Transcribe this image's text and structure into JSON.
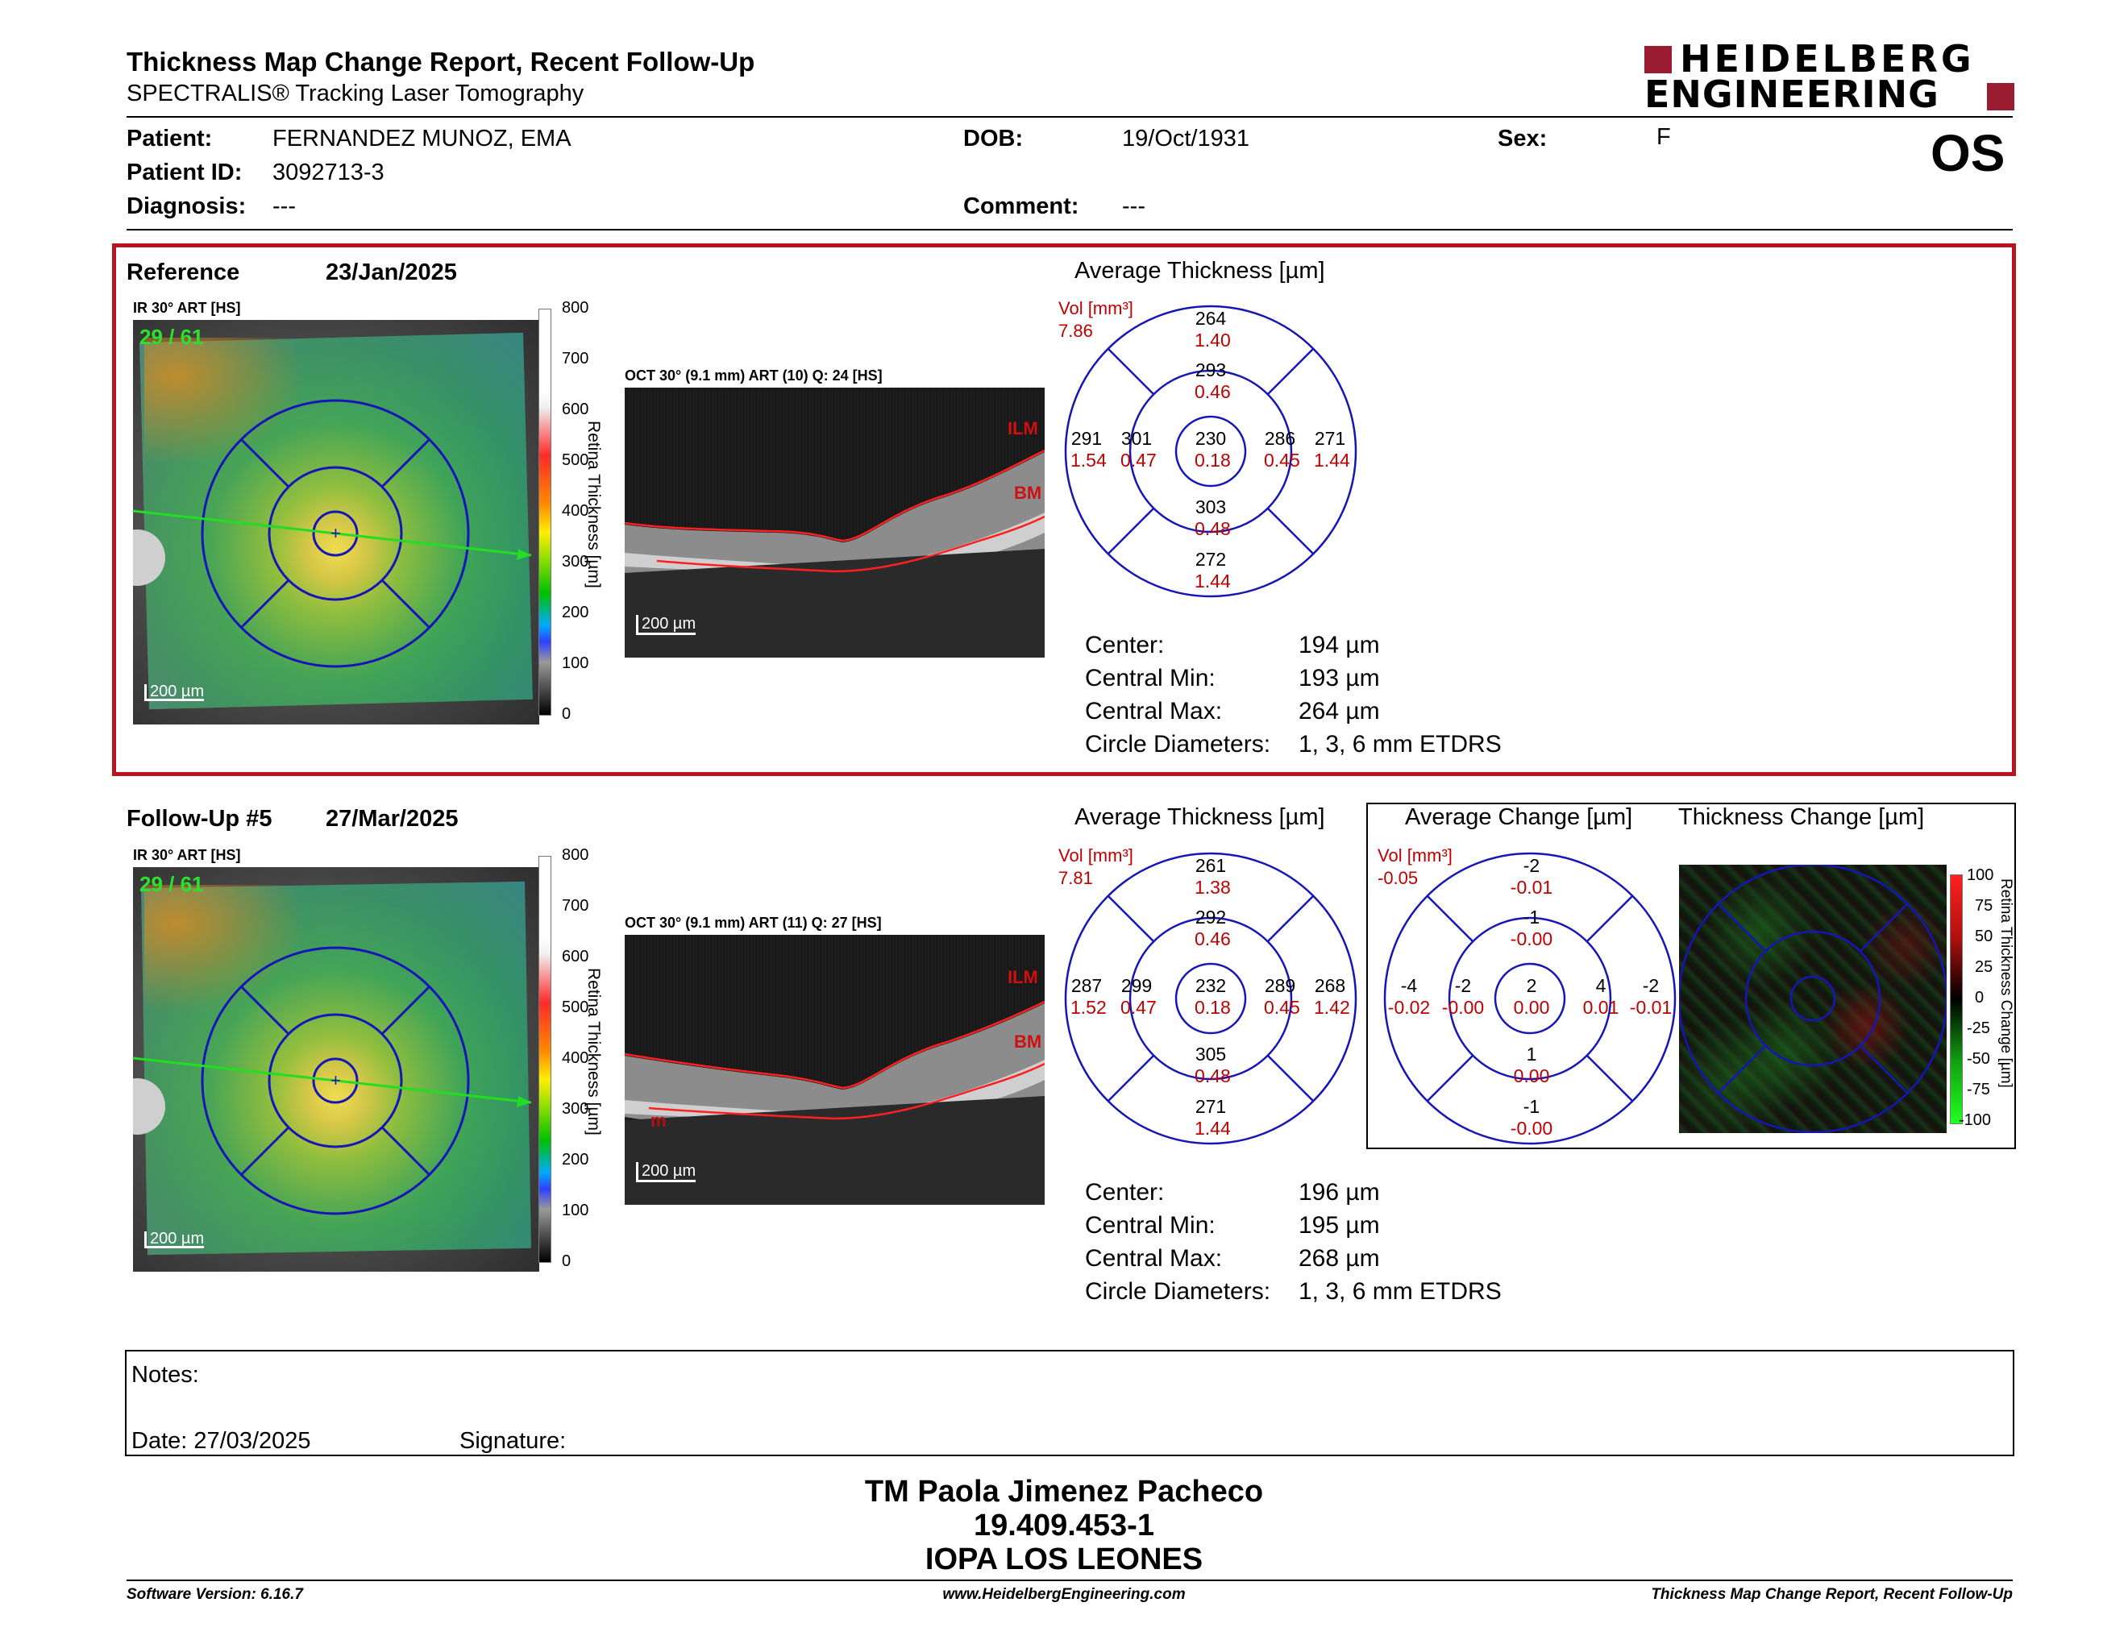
{
  "header": {
    "title": "Thickness Map Change Report, Recent Follow-Up",
    "subtitle": "SPECTRALIS® Tracking Laser Tomography",
    "logo_line1": "HEIDELBERG",
    "logo_line2": "ENGINEERING",
    "eye": "OS"
  },
  "patient": {
    "patient_label": "Patient:",
    "patient_value": "FERNANDEZ MUNOZ, EMA",
    "id_label": "Patient ID:",
    "id_value": "3092713-3",
    "diagnosis_label": "Diagnosis:",
    "diagnosis_value": "---",
    "dob_label": "DOB:",
    "dob_value": "19/Oct/1931",
    "comment_label": "Comment:",
    "comment_value": "---",
    "sex_label": "Sex:",
    "sex_value": "F"
  },
  "reference": {
    "label": "Reference",
    "date": "23/Jan/2025",
    "ir_label": "IR 30° ART [HS]",
    "frame_count": "29 / 61",
    "ir_scale": "200 µm",
    "oct_label": "OCT 30° (9.1 mm) ART (10) Q: 24 [HS]",
    "oct_scale": "200 µm",
    "ilm": "ILM",
    "bm": "BM",
    "avg_title": "Average Thickness [µm]",
    "vol_label": "Vol [mm³]",
    "vol_value": "7.86",
    "etdrs": {
      "outer_sup": {
        "t": "264",
        "v": "1.40"
      },
      "inner_sup": {
        "t": "293",
        "v": "0.46"
      },
      "outer_temp": {
        "t": "291",
        "v": "1.54"
      },
      "inner_temp": {
        "t": "301",
        "v": "0.47"
      },
      "center": {
        "t": "230",
        "v": "0.18"
      },
      "inner_nas": {
        "t": "286",
        "v": "0.45"
      },
      "outer_nas": {
        "t": "271",
        "v": "1.44"
      },
      "inner_inf": {
        "t": "303",
        "v": "0.48"
      },
      "outer_inf": {
        "t": "272",
        "v": "1.44"
      }
    },
    "stats": [
      {
        "label": "Center:",
        "value": "194 µm"
      },
      {
        "label": "Central Min:",
        "value": "193 µm"
      },
      {
        "label": "Central Max:",
        "value": "264 µm"
      },
      {
        "label": "Circle Diameters:",
        "value": "1, 3, 6 mm ETDRS"
      }
    ]
  },
  "followup": {
    "label": "Follow-Up #5",
    "date": "27/Mar/2025",
    "ir_label": "IR 30° ART [HS]",
    "frame_count": "29 / 61",
    "ir_scale": "200 µm",
    "oct_label": "OCT 30° (9.1 mm) ART (11) Q: 27 [HS]",
    "oct_scale": "200 µm",
    "ilm": "ILM",
    "bm": "BM",
    "m": "m",
    "avg_title": "Average Thickness [µm]",
    "vol_label": "Vol [mm³]",
    "vol_value": "7.81",
    "etdrs": {
      "outer_sup": {
        "t": "261",
        "v": "1.38"
      },
      "inner_sup": {
        "t": "292",
        "v": "0.46"
      },
      "outer_temp": {
        "t": "287",
        "v": "1.52"
      },
      "inner_temp": {
        "t": "299",
        "v": "0.47"
      },
      "center": {
        "t": "232",
        "v": "0.18"
      },
      "inner_nas": {
        "t": "289",
        "v": "0.45"
      },
      "outer_nas": {
        "t": "268",
        "v": "1.42"
      },
      "inner_inf": {
        "t": "305",
        "v": "0.48"
      },
      "outer_inf": {
        "t": "271",
        "v": "1.44"
      }
    },
    "stats": [
      {
        "label": "Center:",
        "value": "196 µm"
      },
      {
        "label": "Central Min:",
        "value": "195 µm"
      },
      {
        "label": "Central Max:",
        "value": "268 µm"
      },
      {
        "label": "Circle Diameters:",
        "value": "1, 3, 6 mm ETDRS"
      }
    ]
  },
  "change": {
    "avg_change_title": "Average Change [µm]",
    "thickness_change_title": "Thickness Change [µm]",
    "vol_label": "Vol [mm³]",
    "vol_value": "-0.05",
    "etdrs": {
      "outer_sup": {
        "t": "-2",
        "v": "-0.01"
      },
      "inner_sup": {
        "t": "-1",
        "v": "-0.00"
      },
      "outer_temp": {
        "t": "-4",
        "v": "-0.02"
      },
      "inner_temp": {
        "t": "-2",
        "v": "-0.00"
      },
      "center": {
        "t": "2",
        "v": "0.00"
      },
      "inner_nas": {
        "t": "4",
        "v": "0.01"
      },
      "outer_nas": {
        "t": "-2",
        "v": "-0.01"
      },
      "inner_inf": {
        "t": "1",
        "v": "0.00"
      },
      "outer_inf": {
        "t": "-1",
        "v": "-0.00"
      }
    },
    "scale_labels": [
      "100",
      "75",
      "50",
      "25",
      "0",
      "-25",
      "-50",
      "-75",
      "-100"
    ],
    "scale_title": "Retina Thickness Change [µm]"
  },
  "thickness_scale": {
    "labels": [
      "800",
      "700",
      "600",
      "500",
      "400",
      "300",
      "200",
      "100",
      "0"
    ],
    "title": "Retina Thickness [µm]"
  },
  "notes": {
    "notes_label": "Notes:",
    "date_label": "Date: 27/03/2025",
    "signature_label": "Signature:"
  },
  "signature_block": {
    "name": "TM Paola Jimenez Pacheco",
    "rut": "19.409.453-1",
    "institution": "IOPA LOS LEONES"
  },
  "footer": {
    "software": "Software Version: 6.16.7",
    "website": "www.HeidelbergEngineering.com",
    "report_name": "Thickness Map Change Report, Recent Follow-Up"
  },
  "colors": {
    "accent_red": "#c00000",
    "brand_red": "#9b1b30",
    "grid_blue": "#1515b8"
  }
}
